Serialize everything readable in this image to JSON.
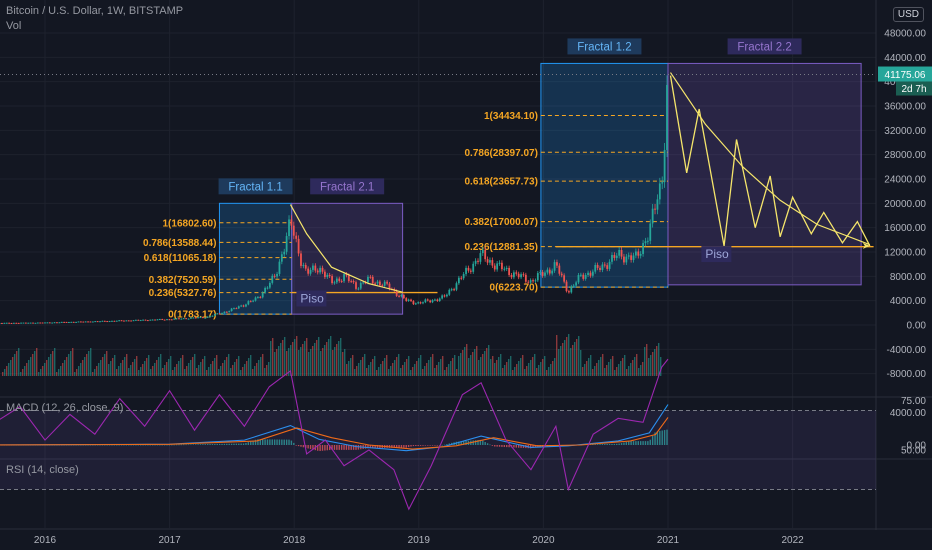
{
  "header": {
    "symbol_line": "Bitcoin / U.S. Dollar, 1W, BITSTAMP",
    "vol_label": "Vol",
    "currency_button": "USD"
  },
  "macd_label": "MACD (12, 26, close, 9)",
  "rsi_label": "RSI (14, close)",
  "price_tag": {
    "value": "41175.06",
    "countdown": "2d 7h",
    "color": "#26a69a"
  },
  "colors": {
    "background": "#131722",
    "grid": "#1e222d",
    "up": "#26a69a",
    "down": "#ef5350",
    "fib": "#f5a623",
    "fractal1_box": "#2196f3",
    "fractal2_box": "#7b5cc4",
    "rsi_line": "#9c27b0",
    "macd_line": "#2196f3",
    "signal_line": "#ff6d00"
  },
  "chart_data": [
    {
      "type": "candlestick",
      "title": "Bitcoin / U.S. Dollar, 1W, BITSTAMP",
      "x_ticks": [
        "2016",
        "2017",
        "2018",
        "2019",
        "2020",
        "2021",
        "2022"
      ],
      "y_ticks": [
        -8000,
        -4000,
        0,
        4000,
        8000,
        12000,
        16000,
        20000,
        24000,
        28000,
        32000,
        36000,
        40000,
        44000,
        48000
      ],
      "y_tick_labels": [
        "-8000.00",
        "-4000.00",
        "0.00",
        "4000.00",
        "8000.00",
        "12000.00",
        "16000.00",
        "20000.00",
        "24000.00",
        "28000.00",
        "32000.00",
        "36000.00",
        "40000.00",
        "44000.00",
        "48000.00"
      ],
      "ylim": [
        -9000,
        52000
      ],
      "close_series": [
        {
          "x": 2015.5,
          "y": 300
        },
        {
          "x": 2016.0,
          "y": 400
        },
        {
          "x": 2016.5,
          "y": 650
        },
        {
          "x": 2017.0,
          "y": 950
        },
        {
          "x": 2017.3,
          "y": 1300
        },
        {
          "x": 2017.5,
          "y": 2500
        },
        {
          "x": 2017.7,
          "y": 4300
        },
        {
          "x": 2017.85,
          "y": 8000
        },
        {
          "x": 2017.97,
          "y": 16800
        },
        {
          "x": 2018.05,
          "y": 11000
        },
        {
          "x": 2018.1,
          "y": 8500
        },
        {
          "x": 2018.2,
          "y": 9500
        },
        {
          "x": 2018.3,
          "y": 7000
        },
        {
          "x": 2018.4,
          "y": 8000
        },
        {
          "x": 2018.5,
          "y": 6300
        },
        {
          "x": 2018.6,
          "y": 7500
        },
        {
          "x": 2018.75,
          "y": 6400
        },
        {
          "x": 2018.9,
          "y": 4000
        },
        {
          "x": 2019.0,
          "y": 3600
        },
        {
          "x": 2019.2,
          "y": 4500
        },
        {
          "x": 2019.35,
          "y": 8000
        },
        {
          "x": 2019.5,
          "y": 11500
        },
        {
          "x": 2019.6,
          "y": 10000
        },
        {
          "x": 2019.75,
          "y": 8500
        },
        {
          "x": 2019.9,
          "y": 7200
        },
        {
          "x": 2020.1,
          "y": 9800
        },
        {
          "x": 2020.2,
          "y": 5500
        },
        {
          "x": 2020.3,
          "y": 8000
        },
        {
          "x": 2020.45,
          "y": 9300
        },
        {
          "x": 2020.6,
          "y": 11500
        },
        {
          "x": 2020.75,
          "y": 11000
        },
        {
          "x": 2020.85,
          "y": 15500
        },
        {
          "x": 2020.95,
          "y": 23500
        },
        {
          "x": 2021.0,
          "y": 41175
        }
      ],
      "current_price": 41175.06,
      "dotted_price_line": 41175.06,
      "fractals": [
        {
          "label": "Fractal 1.1",
          "x_start": 2017.4,
          "x_end": 2017.98,
          "y_low": 1783.17,
          "y_high": 20000
        },
        {
          "label": "Fractal 2.1",
          "x_start": 2017.98,
          "x_end": 2018.87,
          "y_low": 1783.17,
          "y_high": 20000
        },
        {
          "label": "Fractal 1.2",
          "x_start": 2019.98,
          "x_end": 2021.0,
          "y_low": 6223.7,
          "y_high": 43000
        },
        {
          "label": "Fractal 2.2",
          "x_start": 2021.0,
          "x_end": 2022.55,
          "y_low": 6600,
          "y_high": 43000
        }
      ],
      "fib_levels_1": [
        {
          "label": "1(16802.60)",
          "value": 16802.6
        },
        {
          "label": "0.786(13588.44)",
          "value": 13588.44
        },
        {
          "label": "0.618(11065.18)",
          "value": 11065.18
        },
        {
          "label": "0.382(7520.59)",
          "value": 7520.59
        },
        {
          "label": "0.236(5327.76)",
          "value": 5327.76
        },
        {
          "label": "0(1783.17)",
          "value": 1783.17
        }
      ],
      "fib_levels_2": [
        {
          "label": "1(34434.10)",
          "value": 34434.1
        },
        {
          "label": "0.786(28397.07)",
          "value": 28397.07
        },
        {
          "label": "0.618(23657.73)",
          "value": 23657.73
        },
        {
          "label": "0.382(17000.07)",
          "value": 17000.07
        },
        {
          "label": "0.236(12881.35)",
          "value": 12881.35
        },
        {
          "label": "0(6223.70)",
          "value": 6223.7
        }
      ],
      "piso_labels": [
        {
          "label": "Piso",
          "x": 2018.05,
          "y": 3700,
          "line_value": 5327.76,
          "line_x": [
            2017.98,
            2019.15
          ]
        },
        {
          "label": "Piso",
          "x": 2021.3,
          "y": 11000,
          "line_value": 12881.35,
          "line_x": [
            2020.1,
            2022.65
          ]
        }
      ],
      "projection_zigzag": [
        {
          "x": 2021.02,
          "y": 41000
        },
        {
          "x": 2021.15,
          "y": 25000
        },
        {
          "x": 2021.25,
          "y": 35500
        },
        {
          "x": 2021.45,
          "y": 13000
        },
        {
          "x": 2021.55,
          "y": 30500
        },
        {
          "x": 2021.7,
          "y": 16000
        },
        {
          "x": 2021.82,
          "y": 24500
        },
        {
          "x": 2021.9,
          "y": 14500
        },
        {
          "x": 2022.0,
          "y": 21000
        },
        {
          "x": 2022.15,
          "y": 15000
        },
        {
          "x": 2022.25,
          "y": 18500
        },
        {
          "x": 2022.4,
          "y": 13500
        },
        {
          "x": 2022.52,
          "y": 17000
        },
        {
          "x": 2022.62,
          "y": 13000
        }
      ],
      "decay_curves": [
        {
          "points": [
            {
              "x": 2017.97,
              "y": 19800
            },
            {
              "x": 2018.1,
              "y": 15000
            },
            {
              "x": 2018.3,
              "y": 9500
            },
            {
              "x": 2018.6,
              "y": 6800
            },
            {
              "x": 2018.87,
              "y": 5400
            }
          ]
        },
        {
          "points": [
            {
              "x": 2021.02,
              "y": 41500
            },
            {
              "x": 2021.3,
              "y": 33000
            },
            {
              "x": 2021.6,
              "y": 26000
            },
            {
              "x": 2021.9,
              "y": 20500
            },
            {
              "x": 2022.2,
              "y": 16500
            },
            {
              "x": 2022.62,
              "y": 13200
            }
          ]
        }
      ]
    },
    {
      "type": "line",
      "title": "MACD (12, 26, close, 9)",
      "y_ticks": [
        0,
        4000
      ],
      "y_tick_labels": [
        "0.00",
        "4000.00"
      ],
      "ylim": [
        -1500,
        5200
      ],
      "series": [
        {
          "name": "MACD",
          "points": [
            {
              "x": 2015.5,
              "y": 0
            },
            {
              "x": 2017.0,
              "y": 100
            },
            {
              "x": 2017.6,
              "y": 600
            },
            {
              "x": 2017.97,
              "y": 2400
            },
            {
              "x": 2018.2,
              "y": 700
            },
            {
              "x": 2018.5,
              "y": -200
            },
            {
              "x": 2018.9,
              "y": -700
            },
            {
              "x": 2019.2,
              "y": -200
            },
            {
              "x": 2019.5,
              "y": 1100
            },
            {
              "x": 2019.9,
              "y": -300
            },
            {
              "x": 2020.2,
              "y": -100
            },
            {
              "x": 2020.6,
              "y": 500
            },
            {
              "x": 2020.85,
              "y": 1500
            },
            {
              "x": 2021.0,
              "y": 5000
            }
          ]
        },
        {
          "name": "Signal",
          "points": [
            {
              "x": 2015.5,
              "y": 0
            },
            {
              "x": 2017.0,
              "y": 80
            },
            {
              "x": 2017.7,
              "y": 500
            },
            {
              "x": 2018.02,
              "y": 2100
            },
            {
              "x": 2018.3,
              "y": 900
            },
            {
              "x": 2018.6,
              "y": 0
            },
            {
              "x": 2018.95,
              "y": -500
            },
            {
              "x": 2019.3,
              "y": -100
            },
            {
              "x": 2019.6,
              "y": 900
            },
            {
              "x": 2019.95,
              "y": -100
            },
            {
              "x": 2020.3,
              "y": 0
            },
            {
              "x": 2020.7,
              "y": 500
            },
            {
              "x": 2020.9,
              "y": 1300
            },
            {
              "x": 2021.0,
              "y": 3400
            }
          ]
        }
      ]
    },
    {
      "type": "line",
      "title": "RSI (14, close)",
      "y_ticks": [
        50,
        75
      ],
      "y_tick_labels": [
        "50.00",
        "75.00"
      ],
      "ylim": [
        15,
        100
      ],
      "band": [
        30,
        70
      ],
      "series": [
        {
          "name": "RSI",
          "points": [
            {
              "x": 2015.5,
              "y": 60
            },
            {
              "x": 2015.8,
              "y": 72
            },
            {
              "x": 2016.0,
              "y": 55
            },
            {
              "x": 2016.2,
              "y": 68
            },
            {
              "x": 2016.4,
              "y": 58
            },
            {
              "x": 2016.6,
              "y": 76
            },
            {
              "x": 2016.8,
              "y": 62
            },
            {
              "x": 2017.0,
              "y": 80
            },
            {
              "x": 2017.2,
              "y": 60
            },
            {
              "x": 2017.4,
              "y": 78
            },
            {
              "x": 2017.6,
              "y": 62
            },
            {
              "x": 2017.8,
              "y": 82
            },
            {
              "x": 2017.97,
              "y": 90
            },
            {
              "x": 2018.1,
              "y": 48
            },
            {
              "x": 2018.25,
              "y": 55
            },
            {
              "x": 2018.4,
              "y": 42
            },
            {
              "x": 2018.6,
              "y": 50
            },
            {
              "x": 2018.8,
              "y": 40
            },
            {
              "x": 2018.92,
              "y": 20
            },
            {
              "x": 2019.1,
              "y": 42
            },
            {
              "x": 2019.35,
              "y": 78
            },
            {
              "x": 2019.5,
              "y": 84
            },
            {
              "x": 2019.7,
              "y": 55
            },
            {
              "x": 2019.9,
              "y": 40
            },
            {
              "x": 2020.1,
              "y": 62
            },
            {
              "x": 2020.2,
              "y": 30
            },
            {
              "x": 2020.4,
              "y": 58
            },
            {
              "x": 2020.6,
              "y": 66
            },
            {
              "x": 2020.8,
              "y": 64
            },
            {
              "x": 2020.95,
              "y": 92
            },
            {
              "x": 2021.0,
              "y": 96
            }
          ]
        }
      ]
    }
  ],
  "volume_bars_hint": "stylized"
}
